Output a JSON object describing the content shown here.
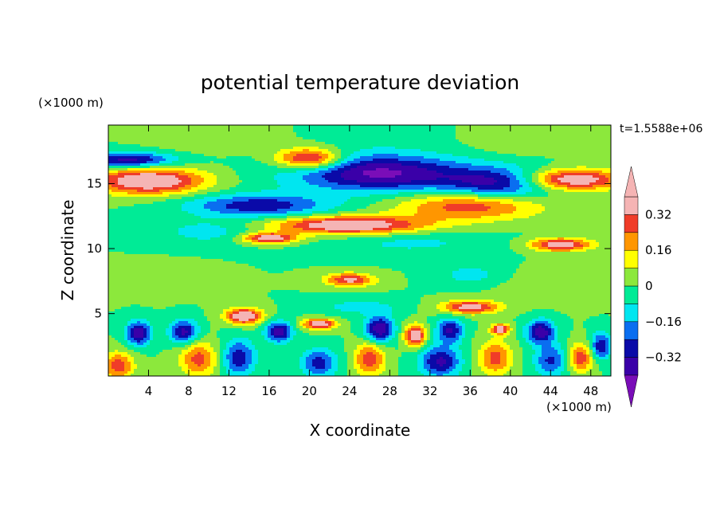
{
  "chart_data": {
    "type": "heatmap",
    "title": "potential temperature deviation",
    "xlabel": "X coordinate",
    "ylabel": "Z coordinate",
    "x_units": "(×1000 m)",
    "y_units": "(×1000 m)",
    "time_label": "t=1.5588e+06",
    "xlim": [
      0,
      50
    ],
    "ylim": [
      0.2,
      19.5
    ],
    "x_ticks": [
      4,
      8,
      12,
      16,
      20,
      24,
      28,
      32,
      36,
      40,
      44,
      48
    ],
    "y_ticks": [
      5,
      10,
      15
    ],
    "colorbar": {
      "levels": [
        -0.4,
        -0.32,
        -0.24,
        -0.16,
        -0.08,
        0,
        0.08,
        0.16,
        0.24,
        0.32,
        0.4
      ],
      "tick_values": [
        0.32,
        0.16,
        0,
        -0.16,
        -0.32
      ],
      "tick_labels": [
        "0.32",
        "0.16",
        "0",
        "−0.16",
        "−0.32"
      ],
      "colors": [
        "#7a0db8",
        "#3a00a8",
        "#0a0aa8",
        "#0a6ef0",
        "#00e6f0",
        "#00eb96",
        "#8ce83c",
        "#ffff00",
        "#ff9600",
        "#f03c28",
        "#f5b4b4"
      ]
    },
    "features": [
      {
        "x": 4,
        "z": 15.2,
        "rx": 5.5,
        "rz": 1.0,
        "value": 0.45
      },
      {
        "x": 46,
        "z": 15.3,
        "rx": 5.0,
        "rz": 0.8,
        "value": 0.45
      },
      {
        "x": 20,
        "z": 16.9,
        "rx": 3.2,
        "rz": 0.8,
        "value": 0.42
      },
      {
        "x": 2,
        "z": 16.8,
        "rx": 4.5,
        "rz": 0.6,
        "value": -0.36
      },
      {
        "x": 27,
        "z": 15.8,
        "rx": 8.5,
        "rz": 1.4,
        "value": -0.42
      },
      {
        "x": 39,
        "z": 15.0,
        "rx": 5.5,
        "rz": 1.2,
        "value": -0.34
      },
      {
        "x": 15,
        "z": 13.3,
        "rx": 7.0,
        "rz": 0.9,
        "value": -0.3
      },
      {
        "x": 36,
        "z": 13.3,
        "rx": 7.0,
        "rz": 1.1,
        "value": 0.3
      },
      {
        "x": 24,
        "z": 11.8,
        "rx": 7.5,
        "rz": 0.7,
        "value": 0.45
      },
      {
        "x": 16,
        "z": 10.8,
        "rx": 2.6,
        "rz": 0.4,
        "value": 0.42
      },
      {
        "x": 45,
        "z": 10.3,
        "rx": 3.0,
        "rz": 0.5,
        "value": 0.4
      },
      {
        "x": 10,
        "z": 18.5,
        "rx": 5.0,
        "rz": 1.0,
        "value": 0.08
      },
      {
        "x": 27,
        "z": 18.3,
        "rx": 6.0,
        "rz": 1.2,
        "value": -0.03
      },
      {
        "x": 41,
        "z": 18.2,
        "rx": 5.0,
        "rz": 1.0,
        "value": 0.06
      },
      {
        "x": 24,
        "z": 7.6,
        "rx": 2.4,
        "rz": 0.5,
        "value": 0.35
      },
      {
        "x": 36,
        "z": 5.5,
        "rx": 2.8,
        "rz": 0.5,
        "value": 0.38
      },
      {
        "x": 13.5,
        "z": 4.8,
        "rx": 1.8,
        "rz": 0.6,
        "value": 0.45
      },
      {
        "x": 21,
        "z": 4.2,
        "rx": 1.6,
        "rz": 0.4,
        "value": 0.42
      },
      {
        "x": 30.5,
        "z": 3.3,
        "rx": 1.0,
        "rz": 0.8,
        "value": 0.44
      },
      {
        "x": 39,
        "z": 3.8,
        "rx": 0.9,
        "rz": 0.4,
        "value": 0.4
      },
      {
        "x": 3,
        "z": 3.5,
        "rx": 1.2,
        "rz": 0.9,
        "value": -0.4
      },
      {
        "x": 7.5,
        "z": 3.6,
        "rx": 1.4,
        "rz": 0.9,
        "value": -0.35
      },
      {
        "x": 17,
        "z": 3.6,
        "rx": 1.3,
        "rz": 0.8,
        "value": -0.38
      },
      {
        "x": 27,
        "z": 3.8,
        "rx": 1.4,
        "rz": 1.0,
        "value": -0.4
      },
      {
        "x": 34,
        "z": 3.7,
        "rx": 1.3,
        "rz": 0.9,
        "value": -0.34
      },
      {
        "x": 43,
        "z": 3.6,
        "rx": 1.4,
        "rz": 0.9,
        "value": -0.38
      },
      {
        "x": 49,
        "z": 2.5,
        "rx": 1.0,
        "rz": 1.0,
        "value": -0.32
      },
      {
        "x": 1,
        "z": 1.0,
        "rx": 1.5,
        "rz": 1.0,
        "value": 0.3
      },
      {
        "x": 9,
        "z": 1.5,
        "rx": 1.8,
        "rz": 1.3,
        "value": 0.28
      },
      {
        "x": 13,
        "z": 1.6,
        "rx": 1.6,
        "rz": 1.4,
        "value": -0.3
      },
      {
        "x": 21,
        "z": 1.2,
        "rx": 1.8,
        "rz": 1.1,
        "value": -0.28
      },
      {
        "x": 26,
        "z": 1.5,
        "rx": 1.5,
        "rz": 1.3,
        "value": 0.3
      },
      {
        "x": 33,
        "z": 1.3,
        "rx": 2.0,
        "rz": 1.2,
        "value": -0.34
      },
      {
        "x": 38.5,
        "z": 1.6,
        "rx": 1.6,
        "rz": 1.3,
        "value": 0.28
      },
      {
        "x": 44,
        "z": 1.4,
        "rx": 1.6,
        "rz": 1.2,
        "value": -0.26
      },
      {
        "x": 47,
        "z": 1.6,
        "rx": 1.2,
        "rz": 1.1,
        "value": 0.3
      },
      {
        "x": 36,
        "z": 8.0,
        "rx": 3.0,
        "rz": 0.8,
        "value": -0.12
      },
      {
        "x": 10,
        "z": 11.3,
        "rx": 5.0,
        "rz": 0.9,
        "value": -0.12
      },
      {
        "x": 30,
        "z": 10.5,
        "rx": 8.0,
        "rz": 1.0,
        "value": -0.1
      },
      {
        "x": 5,
        "z": 7.5,
        "rx": 4.0,
        "rz": 1.0,
        "value": 0.06
      },
      {
        "x": 44,
        "z": 7.0,
        "rx": 5.0,
        "rz": 1.2,
        "value": 0.05
      },
      {
        "x": 25,
        "z": 5.5,
        "rx": 4.0,
        "rz": 0.6,
        "value": -0.12
      }
    ]
  }
}
